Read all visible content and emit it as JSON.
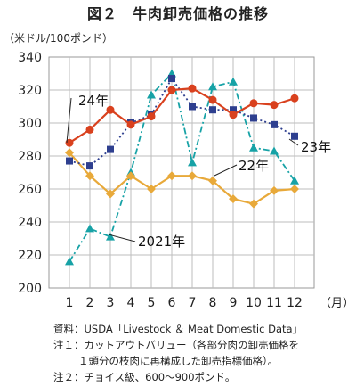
{
  "title": "図２　牛肉卸売価格の推移",
  "unit_label": "（米ドル/100ポンド）",
  "notes": [
    "資料：USDA「Livestock ＆ Meat Domestic Data」",
    "注１：カットアウトバリュー（各部分肉の卸売価格を",
    "１頭分の枝肉に再構成した卸売指標価格）。",
    "注２：チョイス級、600～900ポンド。"
  ],
  "chart_data": {
    "type": "line",
    "x": [
      1,
      2,
      3,
      4,
      5,
      6,
      7,
      8,
      9,
      10,
      11,
      12
    ],
    "x_tick_labels": [
      "1",
      "2",
      "3",
      "4",
      "5",
      "6",
      "7",
      "8",
      "9",
      "10",
      "11",
      "12"
    ],
    "x_unit": "（月）",
    "ylim": [
      200,
      340
    ],
    "y_ticks": [
      200,
      220,
      240,
      260,
      280,
      300,
      320,
      340
    ],
    "grid": true,
    "series": [
      {
        "name": "2021年",
        "color": "#17a2a6",
        "style": "dash-dot",
        "marker": "triangle",
        "values": [
          216,
          236,
          231,
          270,
          317,
          330,
          276,
          322,
          325,
          285,
          283,
          265
        ]
      },
      {
        "name": "22年",
        "color": "#e8a93a",
        "style": "solid",
        "marker": "diamond",
        "values": [
          282,
          268,
          257,
          268,
          260,
          268,
          268,
          265,
          254,
          251,
          259,
          260
        ]
      },
      {
        "name": "23年",
        "color": "#2e3f8f",
        "style": "dotted",
        "marker": "square",
        "values": [
          277,
          274,
          284,
          300,
          305,
          327,
          310,
          308,
          308,
          303,
          299,
          292
        ]
      },
      {
        "name": "24年",
        "color": "#d9411e",
        "style": "solid",
        "marker": "circle",
        "values": [
          288,
          296,
          308,
          299,
          304,
          320,
          321,
          314,
          305,
          312,
          311,
          315
        ]
      }
    ]
  }
}
